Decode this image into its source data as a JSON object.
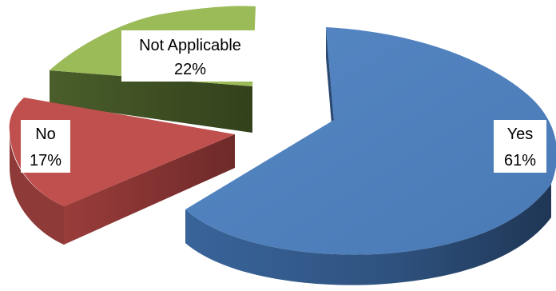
{
  "chart_data": {
    "type": "pie",
    "style": "3d-exploded",
    "title": "",
    "legend": "none",
    "slices": [
      {
        "category": "Yes",
        "label": "Yes",
        "value": 61,
        "value_label": "61%",
        "color": "#4f81bd"
      },
      {
        "category": "No",
        "label": "No",
        "value": 17,
        "value_label": "17%",
        "color": "#c0504d"
      },
      {
        "category": "Not Applicable",
        "label": "Not Applicable",
        "value": 22,
        "value_label": "22%",
        "color": "#9bbb59"
      }
    ]
  }
}
